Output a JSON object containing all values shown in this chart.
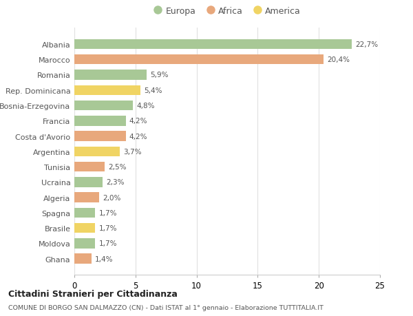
{
  "categories": [
    "Albania",
    "Marocco",
    "Romania",
    "Rep. Dominicana",
    "Bosnia-Erzegovina",
    "Francia",
    "Costa d'Avorio",
    "Argentina",
    "Tunisia",
    "Ucraina",
    "Algeria",
    "Spagna",
    "Brasile",
    "Moldova",
    "Ghana"
  ],
  "values": [
    22.7,
    20.4,
    5.9,
    5.4,
    4.8,
    4.2,
    4.2,
    3.7,
    2.5,
    2.3,
    2.0,
    1.7,
    1.7,
    1.7,
    1.4
  ],
  "labels": [
    "22,7%",
    "20,4%",
    "5,9%",
    "5,4%",
    "4,8%",
    "4,2%",
    "4,2%",
    "3,7%",
    "2,5%",
    "2,3%",
    "2,0%",
    "1,7%",
    "1,7%",
    "1,7%",
    "1,4%"
  ],
  "continents": [
    "Europa",
    "Africa",
    "Europa",
    "America",
    "Europa",
    "Europa",
    "Africa",
    "America",
    "Africa",
    "Europa",
    "Africa",
    "Europa",
    "America",
    "Europa",
    "Africa"
  ],
  "colors": {
    "Europa": "#a8c896",
    "Africa": "#e8a87c",
    "America": "#f0d464"
  },
  "legend_labels": [
    "Europa",
    "Africa",
    "America"
  ],
  "legend_colors": [
    "#a8c896",
    "#e8a87c",
    "#f0d464"
  ],
  "xlim": [
    0,
    25
  ],
  "xticks": [
    0,
    5,
    10,
    15,
    20,
    25
  ],
  "title1": "Cittadini Stranieri per Cittadinanza",
  "title2": "COMUNE DI BORGO SAN DALMAZZO (CN) - Dati ISTAT al 1° gennaio - Elaborazione TUTTITALIA.IT",
  "bg_color": "#ffffff",
  "grid_color": "#e0e0e0"
}
